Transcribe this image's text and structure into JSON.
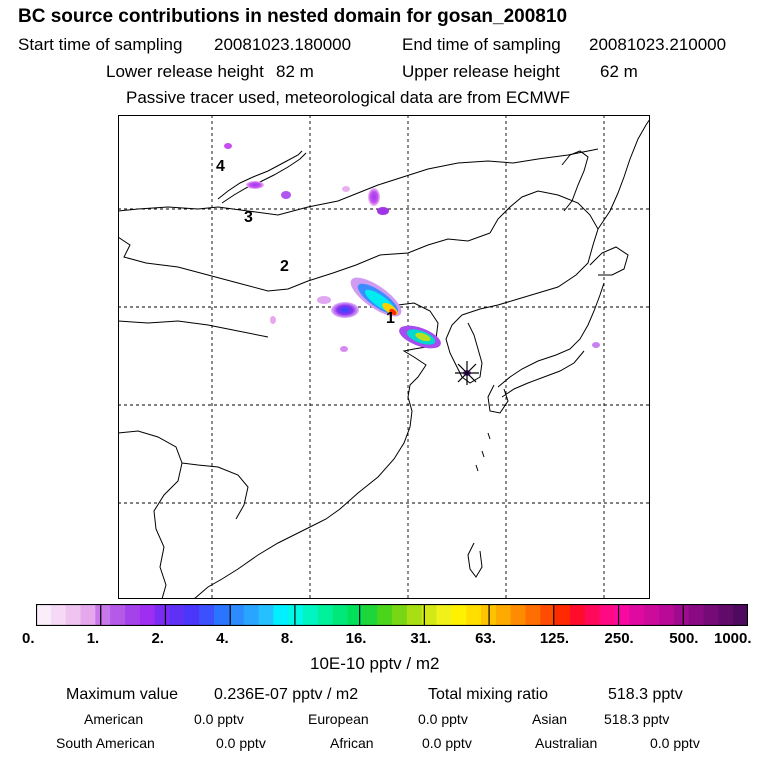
{
  "header": {
    "title": "BC  source contributions in nested domain for gosan_200810",
    "start_label": "Start time of sampling",
    "start_value": "20081023.180000",
    "end_label": "End time of sampling",
    "end_value": "20081023.210000",
    "lower_label": "Lower release height",
    "lower_value": "82 m",
    "upper_label": "Upper release height",
    "upper_value": "62 m",
    "note": "Passive tracer used, meteorological data are from ECMWF"
  },
  "map": {
    "labels": [
      "1",
      "2",
      "3",
      "4"
    ],
    "receptor_marker": "gosan-receptor",
    "colors": {
      "coast": "#000000",
      "grid": "#000000",
      "plume_low": "#c020f0",
      "plume_mid": "#00e0ff",
      "plume_high": "#ffd000",
      "plume_peak": "#ff2000"
    }
  },
  "colorbar": {
    "ticks": [
      "0.",
      "1.",
      "2.",
      "4.",
      "8.",
      "16.",
      "31.",
      "63.",
      "125.",
      "250.",
      "500.",
      "1000."
    ],
    "colors": [
      "#fbeefb",
      "#f6d9f6",
      "#f0c4f0",
      "#e6a8ec",
      "#c878ea",
      "#b55ae8",
      "#a443ea",
      "#9e2ff2",
      "#7a2cf4",
      "#5f31f7",
      "#4a36fa",
      "#3d50fd",
      "#2b74ff",
      "#2b8bff",
      "#29a4ff",
      "#25c0ff",
      "#00f0ff",
      "#00f8e6",
      "#00f5c2",
      "#00f19c",
      "#00e87a",
      "#00e059",
      "#1ed63a",
      "#4bd41c",
      "#78d614",
      "#a8de14",
      "#d3e814",
      "#f0f01a",
      "#fff200",
      "#ffde00",
      "#ffc400",
      "#ffaa00",
      "#ff8c00",
      "#ff6e00",
      "#ff4c00",
      "#ff2a00",
      "#ff0c2c",
      "#ff0a5a",
      "#ff0a82",
      "#f80aa0",
      "#e00aa0",
      "#cc0a9c",
      "#b80a96",
      "#a00a8e",
      "#8a0a82",
      "#760a76",
      "#620a6a",
      "#4e0a5e"
    ],
    "unit": "10E-10 pptv / m2"
  },
  "stats": {
    "max_label": "Maximum value",
    "max_value": "0.236E-07 pptv / m2",
    "total_label": "Total mixing ratio",
    "total_value": "518.3 pptv",
    "regions": [
      {
        "name": "American",
        "value": "0.0 pptv"
      },
      {
        "name": "European",
        "value": "0.0 pptv"
      },
      {
        "name": "Asian",
        "value": "518.3 pptv"
      },
      {
        "name": "South American",
        "value": "0.0 pptv"
      },
      {
        "name": "African",
        "value": "0.0 pptv"
      },
      {
        "name": "Australian",
        "value": "0.0 pptv"
      }
    ]
  }
}
